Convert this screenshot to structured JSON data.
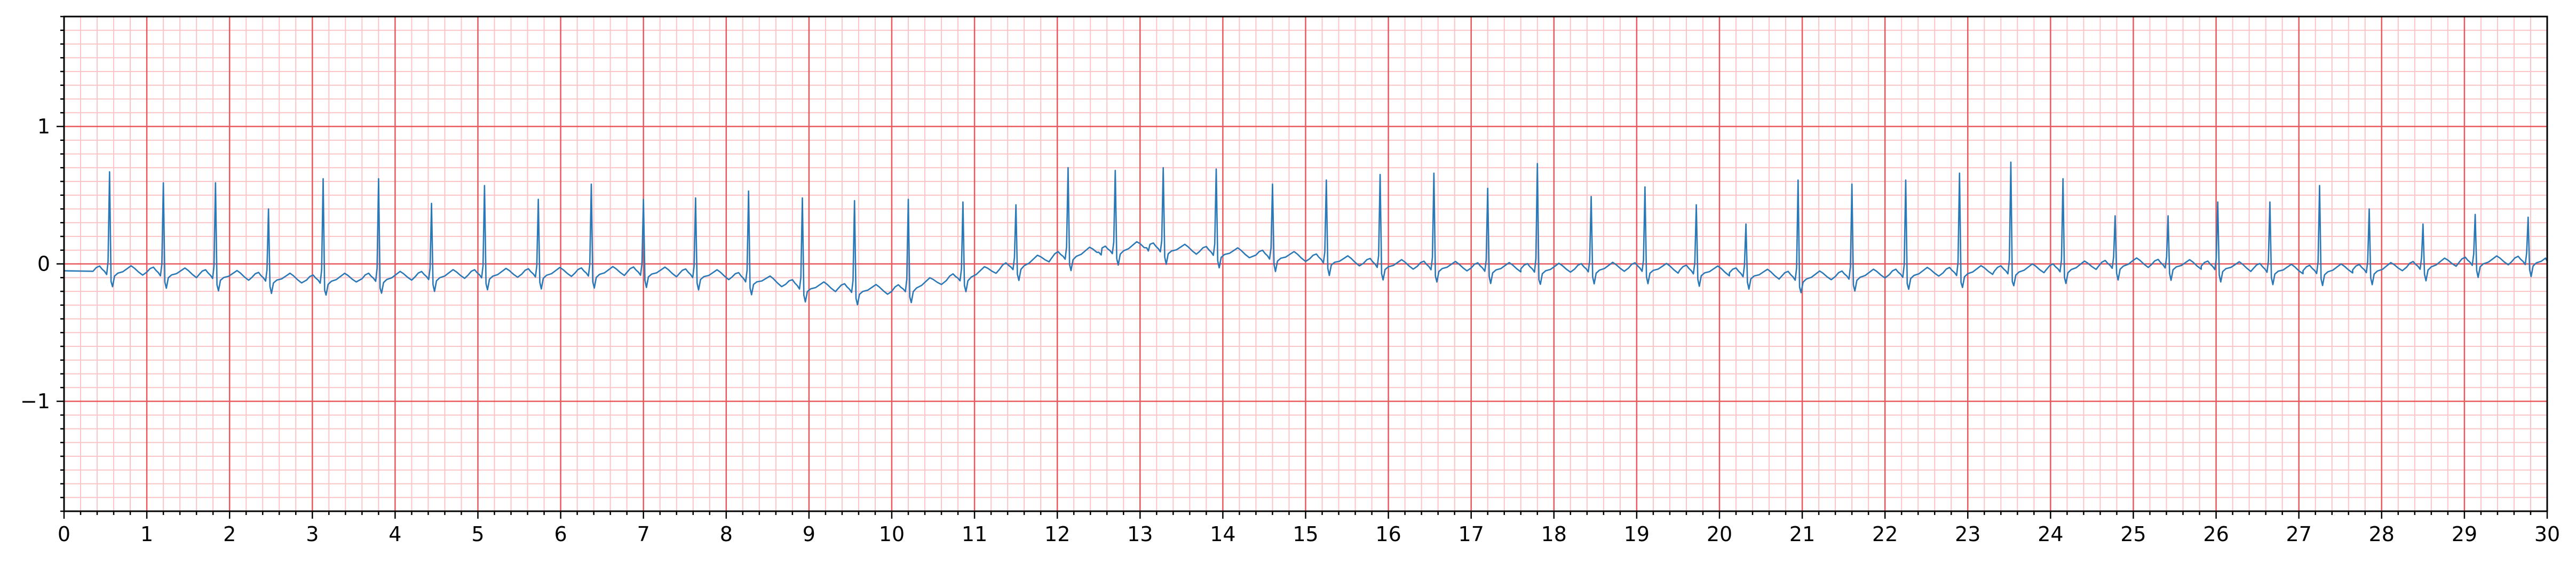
{
  "chart_data": {
    "type": "line",
    "title": "",
    "xlabel": "",
    "ylabel": "",
    "xlim": [
      0,
      30
    ],
    "ylim": [
      -1.8,
      1.8
    ],
    "x_ticks": [
      0,
      1,
      2,
      3,
      4,
      5,
      6,
      7,
      8,
      9,
      10,
      11,
      12,
      13,
      14,
      15,
      16,
      17,
      18,
      19,
      20,
      21,
      22,
      23,
      24,
      25,
      26,
      27,
      28,
      29,
      30
    ],
    "x_tick_labels": [
      "0",
      "1",
      "2",
      "3",
      "4",
      "5",
      "6",
      "7",
      "8",
      "9",
      "10",
      "11",
      "12",
      "13",
      "14",
      "15",
      "16",
      "17",
      "18",
      "19",
      "20",
      "21",
      "22",
      "23",
      "24",
      "25",
      "26",
      "27",
      "28",
      "29",
      "30"
    ],
    "y_ticks": [
      -1,
      0,
      1
    ],
    "y_tick_labels": [
      "−1",
      "0",
      "1"
    ],
    "grid": {
      "major": true,
      "minor": true,
      "major_x_step": 1,
      "major_y_step": 1,
      "minor_x_step": 0.2,
      "minor_y_step": 0.1
    },
    "colors": {
      "major_grid": "#e8585d",
      "minor_grid": "#fbc4c6",
      "line": "#2a78b5",
      "axes": "#000000"
    },
    "series": [
      {
        "baseline_x": [
          0,
          1,
          2,
          3,
          4,
          5,
          6,
          7,
          8,
          9,
          10,
          11,
          12,
          13,
          14,
          15,
          16,
          17,
          18,
          19,
          20,
          21,
          22,
          23,
          24,
          25,
          26,
          27,
          28,
          29,
          30
        ],
        "baseline_y": [
          -0.05,
          -0.06,
          -0.09,
          -0.12,
          -0.1,
          -0.08,
          -0.07,
          -0.06,
          -0.09,
          -0.17,
          -0.2,
          -0.08,
          0.05,
          0.12,
          0.08,
          0.04,
          -0.01,
          -0.03,
          -0.04,
          -0.03,
          -0.06,
          -0.1,
          -0.08,
          -0.06,
          -0.04,
          0.0,
          -0.02,
          -0.05,
          -0.04,
          0.01,
          0.02
        ],
        "r_peaks_x": [
          0.55,
          1.2,
          1.83,
          2.47,
          3.13,
          3.8,
          4.44,
          5.08,
          5.73,
          6.37,
          7.0,
          7.63,
          8.27,
          8.92,
          9.55,
          10.2,
          10.86,
          11.5,
          12.13,
          12.7,
          13.28,
          13.92,
          14.6,
          15.25,
          15.9,
          16.55,
          17.2,
          17.8,
          18.45,
          19.1,
          19.72,
          20.32,
          20.95,
          21.6,
          22.25,
          22.9,
          23.52,
          24.15,
          24.78,
          25.42,
          26.02,
          26.65,
          27.25,
          27.85,
          28.5,
          29.13,
          29.77
        ],
        "r_peaks_y": [
          0.67,
          0.59,
          0.59,
          0.4,
          0.62,
          0.62,
          0.44,
          0.57,
          0.47,
          0.58,
          0.47,
          0.48,
          0.53,
          0.48,
          0.46,
          0.47,
          0.45,
          0.43,
          0.7,
          0.68,
          0.7,
          0.69,
          0.58,
          0.61,
          0.65,
          0.66,
          0.55,
          0.73,
          0.49,
          0.56,
          0.43,
          0.29,
          0.61,
          0.58,
          0.61,
          0.66,
          0.74,
          0.62,
          0.35,
          0.35,
          0.45,
          0.45,
          0.57,
          0.4,
          0.29,
          0.36,
          0.34
        ]
      }
    ]
  }
}
